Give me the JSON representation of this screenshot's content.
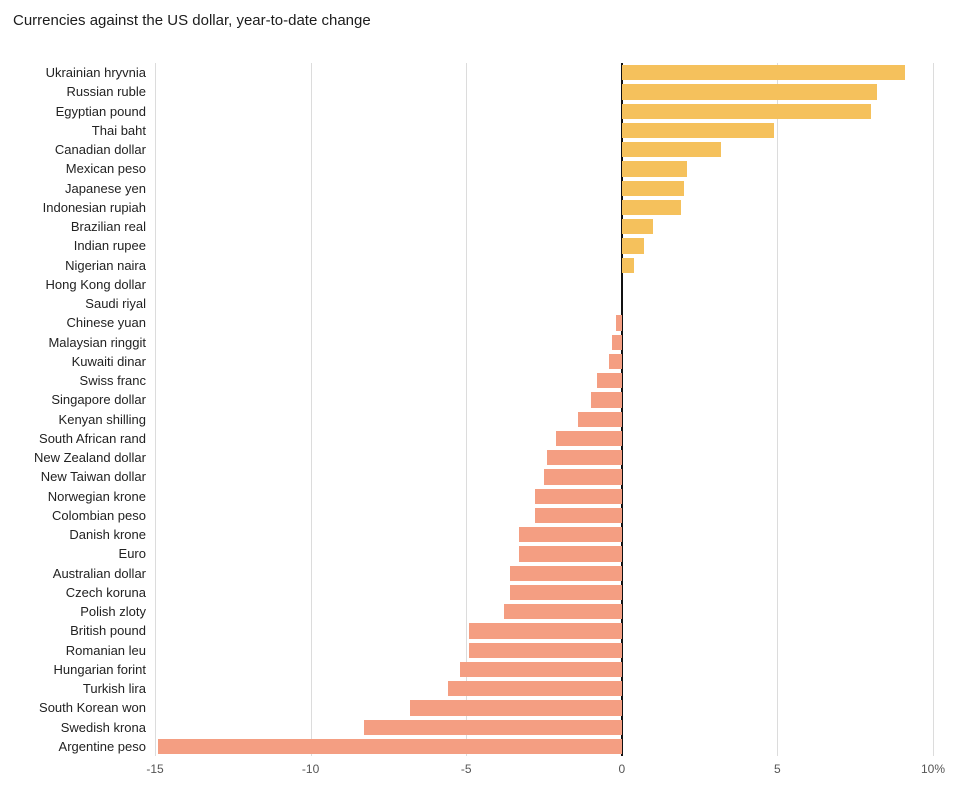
{
  "title": "Currencies against the US dollar, year-to-date change",
  "chart_data": {
    "type": "bar",
    "orientation": "horizontal",
    "title": "Currencies against the US dollar, year-to-date change",
    "xlabel": "",
    "ylabel": "",
    "xlim": [
      -15,
      10
    ],
    "xticks": [
      -15,
      -10,
      -5,
      0,
      5,
      10
    ],
    "xtick_labels": [
      "-15",
      "-10",
      "-5",
      "0",
      "5",
      "10%"
    ],
    "grid": true,
    "legend": false,
    "categories": [
      "Ukrainian hryvnia",
      "Russian ruble",
      "Egyptian pound",
      "Thai baht",
      "Canadian dollar",
      "Mexican peso",
      "Japanese yen",
      "Indonesian rupiah",
      "Brazilian real",
      "Indian rupee",
      "Nigerian naira",
      "Hong Kong dollar",
      "Saudi riyal",
      "Chinese yuan",
      "Malaysian ringgit",
      "Kuwaiti dinar",
      "Swiss franc",
      "Singapore dollar",
      "Kenyan shilling",
      "South African rand",
      "New Zealand dollar",
      "New Taiwan dollar",
      "Norwegian krone",
      "Colombian peso",
      "Danish krone",
      "Euro",
      "Australian dollar",
      "Czech koruna",
      "Polish zloty",
      "British pound",
      "Romanian leu",
      "Hungarian forint",
      "Turkish lira",
      "South Korean won",
      "Swedish krona",
      "Argentine peso"
    ],
    "values": [
      9.1,
      8.2,
      8.0,
      4.9,
      3.2,
      2.1,
      2.0,
      1.9,
      1.0,
      0.7,
      0.4,
      0.0,
      0.0,
      -0.2,
      -0.3,
      -0.4,
      -0.8,
      -1.0,
      -1.4,
      -2.1,
      -2.4,
      -2.5,
      -2.8,
      -2.8,
      -3.3,
      -3.3,
      -3.6,
      -3.6,
      -3.8,
      -4.9,
      -4.9,
      -5.2,
      -5.6,
      -6.8,
      -8.3,
      -14.9
    ],
    "colors": {
      "positive": "#f5c15c",
      "negative": "#f49e82",
      "gridline": "#dcdcdc",
      "zero_line": "#111111"
    }
  }
}
